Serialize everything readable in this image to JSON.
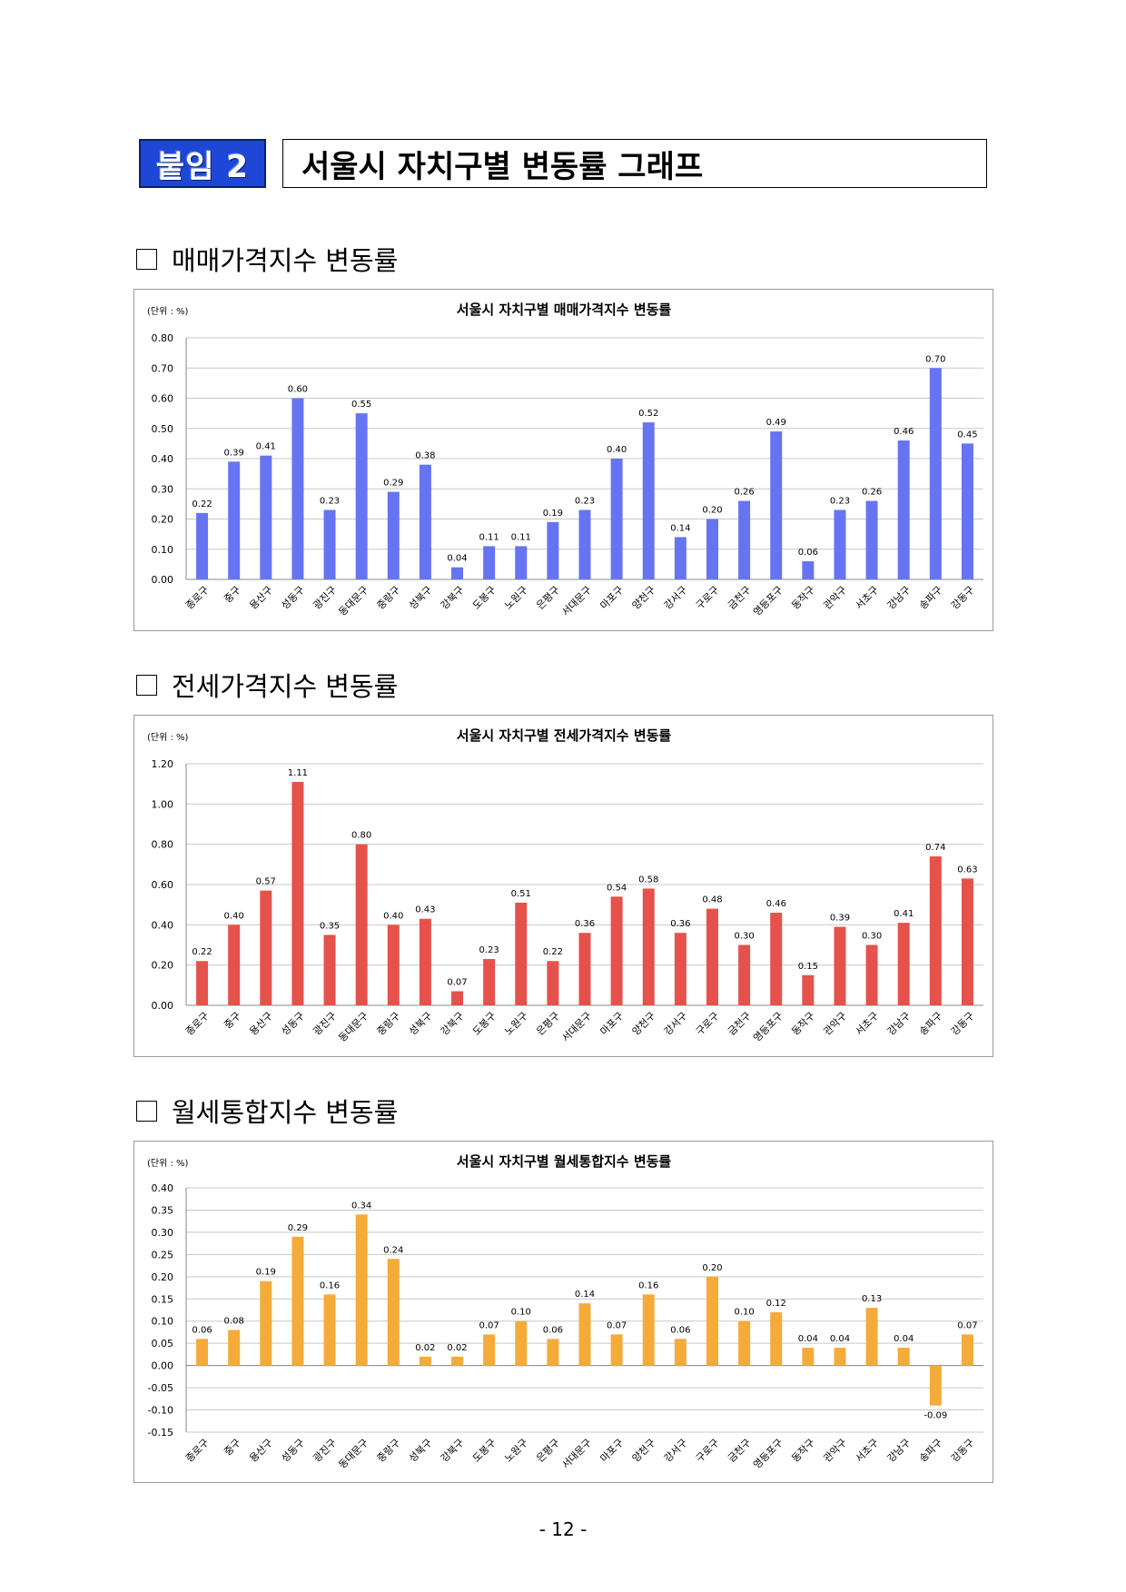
{
  "header": {
    "badge": "붙임 2",
    "title": "서울시 자치구별 변동률 그래프"
  },
  "sections": [
    {
      "title": "매매가격지수 변동률"
    },
    {
      "title": "전세가격지수 변동률"
    },
    {
      "title": "월세통합지수 변동률"
    }
  ],
  "footer": {
    "page": "- 12 -"
  },
  "colors": {
    "sale": "#6674f2",
    "jeonse": "#e5524b",
    "wolse": "#f5ab38"
  },
  "chart_data": [
    {
      "type": "bar",
      "title": "서울시 자치구별 매매가격지수 변동률",
      "unit_label": "(단위 : %)",
      "categories": [
        "종로구",
        "중구",
        "용산구",
        "성동구",
        "광진구",
        "동대문구",
        "중랑구",
        "성북구",
        "강북구",
        "도봉구",
        "노원구",
        "은평구",
        "서대문구",
        "마포구",
        "양천구",
        "강서구",
        "구로구",
        "금천구",
        "영등포구",
        "동작구",
        "관악구",
        "서초구",
        "강남구",
        "송파구",
        "강동구"
      ],
      "values": [
        0.22,
        0.39,
        0.41,
        0.6,
        0.23,
        0.55,
        0.29,
        0.38,
        0.04,
        0.11,
        0.11,
        0.19,
        0.23,
        0.4,
        0.52,
        0.14,
        0.2,
        0.26,
        0.49,
        0.06,
        0.23,
        0.26,
        0.46,
        0.7,
        0.45
      ],
      "ylim": [
        0.0,
        0.8
      ],
      "yticks": [
        "0.00",
        "0.10",
        "0.20",
        "0.30",
        "0.40",
        "0.50",
        "0.60",
        "0.70",
        "0.80"
      ],
      "grid": true,
      "xlabel": "",
      "ylabel": ""
    },
    {
      "type": "bar",
      "title": "서울시 자치구별 전세가격지수 변동률",
      "unit_label": "(단위 : %)",
      "categories": [
        "종로구",
        "중구",
        "용산구",
        "성동구",
        "광진구",
        "동대문구",
        "중랑구",
        "성북구",
        "강북구",
        "도봉구",
        "노원구",
        "은평구",
        "서대문구",
        "마포구",
        "양천구",
        "강서구",
        "구로구",
        "금천구",
        "영등포구",
        "동작구",
        "관악구",
        "서초구",
        "강남구",
        "송파구",
        "강동구"
      ],
      "values": [
        0.22,
        0.4,
        0.57,
        1.11,
        0.35,
        0.8,
        0.4,
        0.43,
        0.07,
        0.23,
        0.51,
        0.22,
        0.36,
        0.54,
        0.58,
        0.36,
        0.48,
        0.3,
        0.46,
        0.15,
        0.39,
        0.3,
        0.41,
        0.74,
        0.63
      ],
      "ylim": [
        0.0,
        1.2
      ],
      "yticks": [
        "0.00",
        "0.20",
        "0.40",
        "0.60",
        "0.80",
        "1.00",
        "1.20"
      ],
      "grid": true,
      "xlabel": "",
      "ylabel": ""
    },
    {
      "type": "bar",
      "title": "서울시 자치구별 월세통합지수 변동률",
      "unit_label": "(단위 : %)",
      "categories": [
        "종로구",
        "중구",
        "용산구",
        "성동구",
        "광진구",
        "동대문구",
        "중랑구",
        "성북구",
        "강북구",
        "도봉구",
        "노원구",
        "은평구",
        "서대문구",
        "마포구",
        "양천구",
        "강서구",
        "구로구",
        "금천구",
        "영등포구",
        "동작구",
        "관악구",
        "서초구",
        "강남구",
        "송파구",
        "강동구"
      ],
      "values": [
        0.06,
        0.08,
        0.19,
        0.29,
        0.16,
        0.34,
        0.24,
        0.02,
        0.02,
        0.07,
        0.1,
        0.06,
        0.14,
        0.07,
        0.16,
        0.06,
        0.2,
        0.1,
        0.12,
        0.04,
        0.04,
        0.13,
        0.04,
        -0.09,
        0.07
      ],
      "ylim": [
        -0.15,
        0.4
      ],
      "yticks": [
        "-0.15",
        "-0.10",
        "-0.05",
        "0.00",
        "0.05",
        "0.10",
        "0.15",
        "0.20",
        "0.25",
        "0.30",
        "0.35",
        "0.40"
      ],
      "grid": true,
      "xlabel": "",
      "ylabel": ""
    }
  ]
}
